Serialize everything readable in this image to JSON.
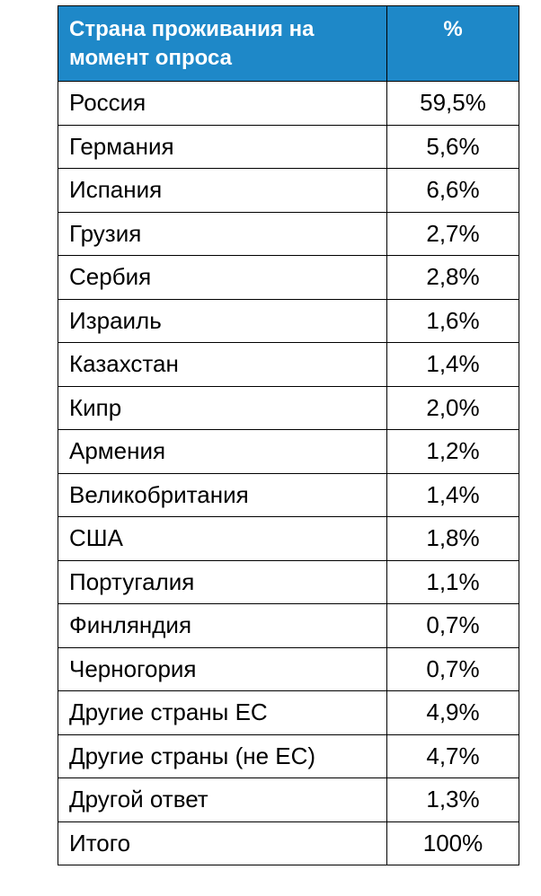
{
  "header": {
    "country": "Страна проживания на момент опроса",
    "percent": "%"
  },
  "rows": [
    {
      "country": "Россия",
      "percent": "59,5%"
    },
    {
      "country": "Германия",
      "percent": "5,6%"
    },
    {
      "country": "Испания",
      "percent": "6,6%"
    },
    {
      "country": "Грузия",
      "percent": "2,7%"
    },
    {
      "country": "Сербия",
      "percent": "2,8%"
    },
    {
      "country": "Израиль",
      "percent": "1,6%"
    },
    {
      "country": "Казахстан",
      "percent": "1,4%"
    },
    {
      "country": "Кипр",
      "percent": "2,0%"
    },
    {
      "country": "Армения",
      "percent": "1,2%"
    },
    {
      "country": "Великобритания",
      "percent": "1,4%"
    },
    {
      "country": "США",
      "percent": "1,8%"
    },
    {
      "country": "Португалия",
      "percent": "1,1%"
    },
    {
      "country": "Финляндия",
      "percent": "0,7%"
    },
    {
      "country": "Черногория",
      "percent": "0,7%"
    },
    {
      "country": "Другие страны ЕС",
      "percent": "4,9%"
    },
    {
      "country": "Другие страны (не ЕС)",
      "percent": "4,7%"
    },
    {
      "country": "Другой ответ",
      "percent": "1,3%"
    },
    {
      "country": "Итого",
      "percent": "100%"
    }
  ],
  "colors": {
    "header_bg": "#1e88c8",
    "header_text": "#ffffff",
    "border": "#000000"
  }
}
